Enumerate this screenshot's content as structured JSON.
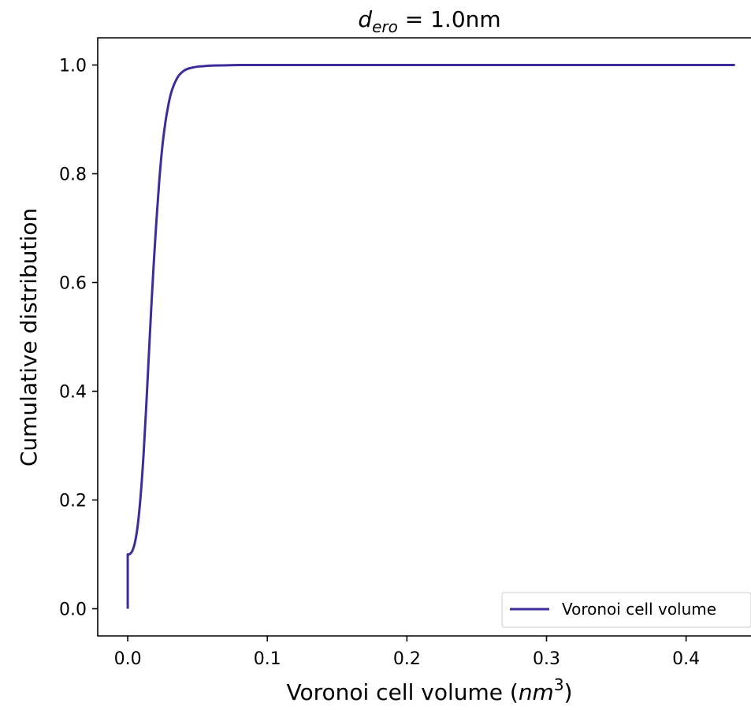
{
  "chart_data": {
    "type": "line",
    "title": "d_ero = 1.0nm",
    "title_parts": {
      "base": "d",
      "sub": "ero",
      "rest": " = 1.0nm"
    },
    "xlabel": "Voronoi cell volume (nm^3)",
    "xlabel_parts": {
      "pre": "Voronoi cell volume (",
      "italic": "nm",
      "sup": "3",
      "post": ")"
    },
    "ylabel": "Cumulative distribution",
    "xlim": [
      -0.0215,
      0.4465
    ],
    "ylim": [
      -0.05,
      1.05
    ],
    "xticks": [
      0.0,
      0.1,
      0.2,
      0.3,
      0.4
    ],
    "xtick_labels": [
      "0.0",
      "0.1",
      "0.2",
      "0.3",
      "0.4"
    ],
    "yticks": [
      0.0,
      0.2,
      0.4,
      0.6,
      0.8,
      1.0
    ],
    "ytick_labels": [
      "0.0",
      "0.2",
      "0.4",
      "0.6",
      "0.8",
      "1.0"
    ],
    "grid": false,
    "legend_position": "bottom-right",
    "series": [
      {
        "name": "Voronoi cell volume",
        "color": "#3b2e9c",
        "x": [
          0.0,
          0.0,
          0.001,
          0.003,
          0.005,
          0.007,
          0.009,
          0.011,
          0.013,
          0.015,
          0.017,
          0.019,
          0.021,
          0.023,
          0.025,
          0.027,
          0.029,
          0.031,
          0.033,
          0.035,
          0.037,
          0.04,
          0.043,
          0.046,
          0.05,
          0.055,
          0.06,
          0.07,
          0.08,
          0.1,
          0.15,
          0.2,
          0.3,
          0.435
        ],
        "y": [
          0.0,
          0.1,
          0.1,
          0.105,
          0.12,
          0.15,
          0.2,
          0.27,
          0.36,
          0.46,
          0.56,
          0.65,
          0.73,
          0.8,
          0.855,
          0.895,
          0.925,
          0.948,
          0.963,
          0.974,
          0.982,
          0.989,
          0.993,
          0.995,
          0.997,
          0.998,
          0.999,
          0.9995,
          1.0,
          1.0,
          1.0,
          1.0,
          1.0,
          1.0
        ]
      }
    ]
  }
}
